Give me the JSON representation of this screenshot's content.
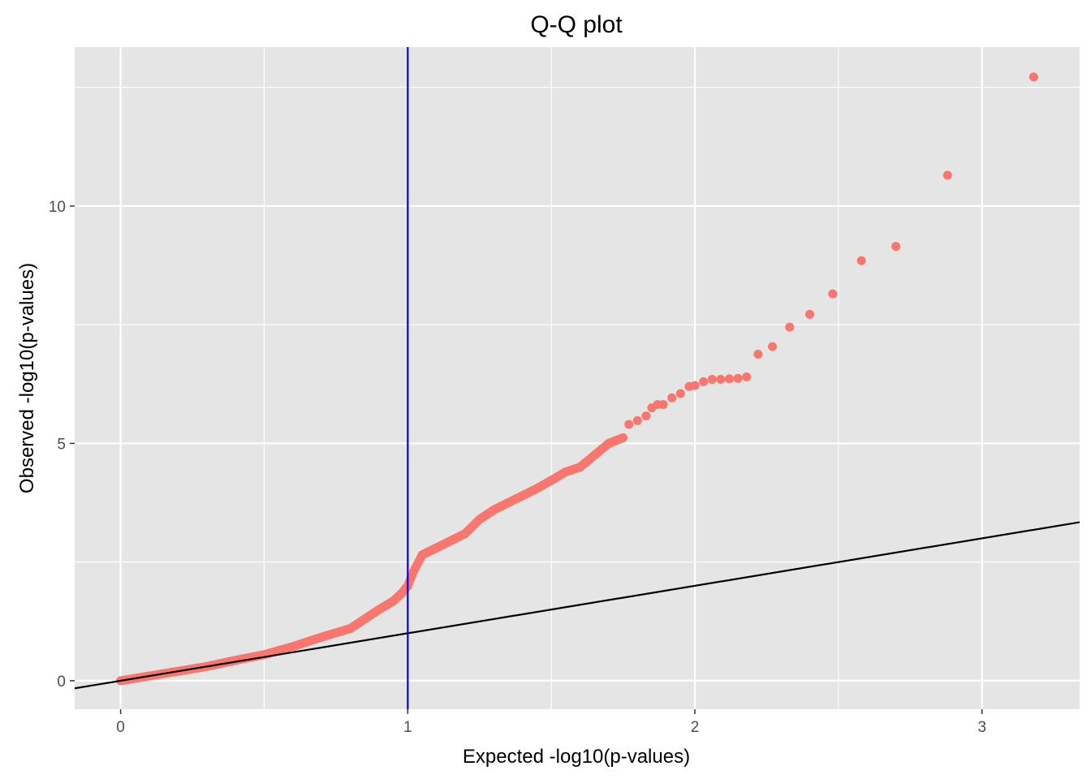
{
  "chart_data": {
    "type": "scatter",
    "title": "Q-Q plot",
    "xlabel": "Expected -log10(p-values)",
    "ylabel": "Observed -log10(p-values)",
    "xlim": [
      -0.16,
      3.34
    ],
    "ylim": [
      -0.6,
      13.35
    ],
    "x_ticks": [
      0,
      1,
      2,
      3
    ],
    "x_tick_labels": [
      "0",
      "1",
      "2",
      "3"
    ],
    "y_ticks": [
      0,
      5,
      10
    ],
    "y_tick_labels": [
      "0",
      "5",
      "10"
    ],
    "x_minor": [
      0.5,
      1.5,
      2.5
    ],
    "y_minor": [
      2.5,
      7.5,
      12.5
    ],
    "grid": true,
    "legend": "none",
    "colors": {
      "panel": "#e5e5e5",
      "grid": "#ffffff",
      "points": "#f8766d",
      "vline": "#0000ff",
      "diagonal": "#000000",
      "ticks": "#333333"
    },
    "reference_lines": {
      "vline_x": 1,
      "diagonal": {
        "slope": 1,
        "intercept": 0
      }
    },
    "curve_knots": [
      [
        0.0,
        0.0
      ],
      [
        0.1,
        0.1
      ],
      [
        0.2,
        0.2
      ],
      [
        0.3,
        0.3
      ],
      [
        0.4,
        0.43
      ],
      [
        0.5,
        0.55
      ],
      [
        0.6,
        0.72
      ],
      [
        0.7,
        0.92
      ],
      [
        0.8,
        1.1
      ],
      [
        0.85,
        1.3
      ],
      [
        0.9,
        1.5
      ],
      [
        0.95,
        1.68
      ],
      [
        0.98,
        1.85
      ],
      [
        1.0,
        2.0
      ],
      [
        1.02,
        2.3
      ],
      [
        1.05,
        2.65
      ],
      [
        1.1,
        2.8
      ],
      [
        1.15,
        2.95
      ],
      [
        1.2,
        3.1
      ],
      [
        1.25,
        3.4
      ],
      [
        1.3,
        3.6
      ],
      [
        1.35,
        3.75
      ],
      [
        1.4,
        3.9
      ],
      [
        1.45,
        4.05
      ],
      [
        1.5,
        4.22
      ],
      [
        1.55,
        4.4
      ],
      [
        1.6,
        4.5
      ],
      [
        1.65,
        4.75
      ],
      [
        1.7,
        5.0
      ],
      [
        1.75,
        5.12
      ]
    ],
    "tail_points": [
      [
        1.77,
        5.4
      ],
      [
        1.8,
        5.48
      ],
      [
        1.83,
        5.58
      ],
      [
        1.85,
        5.75
      ],
      [
        1.87,
        5.82
      ],
      [
        1.89,
        5.82
      ],
      [
        1.92,
        5.96
      ],
      [
        1.95,
        6.05
      ],
      [
        1.98,
        6.2
      ],
      [
        2.0,
        6.22
      ],
      [
        2.03,
        6.3
      ],
      [
        2.06,
        6.35
      ],
      [
        2.09,
        6.35
      ],
      [
        2.12,
        6.36
      ],
      [
        2.15,
        6.37
      ],
      [
        2.18,
        6.4
      ],
      [
        2.22,
        6.88
      ],
      [
        2.27,
        7.04
      ],
      [
        2.33,
        7.45
      ],
      [
        2.4,
        7.72
      ],
      [
        2.48,
        8.15
      ],
      [
        2.58,
        8.85
      ],
      [
        2.7,
        9.15
      ],
      [
        2.88,
        10.65
      ],
      [
        3.18,
        12.72
      ]
    ]
  }
}
